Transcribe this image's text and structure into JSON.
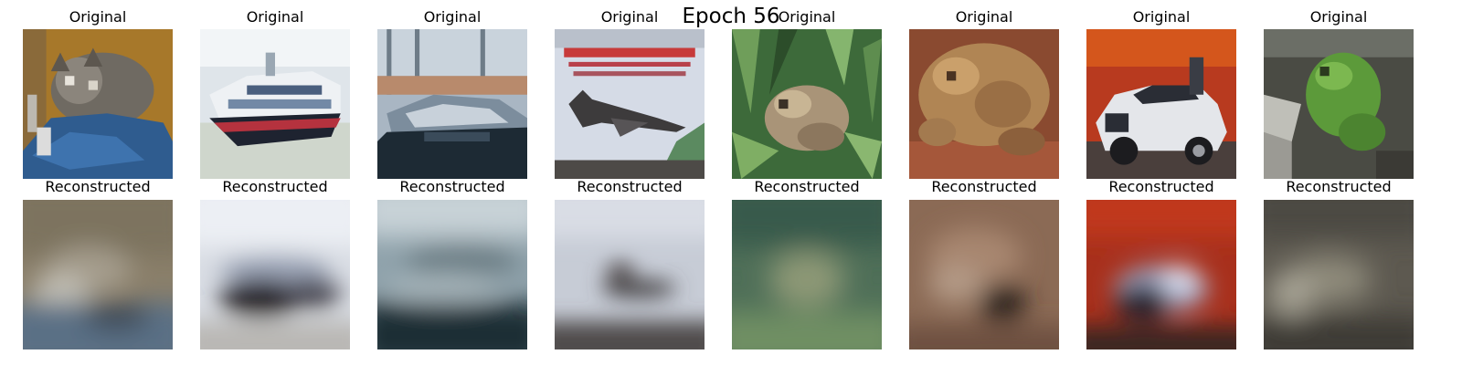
{
  "figure": {
    "title": "Epoch 56"
  },
  "panels": [
    {
      "original_label": "Original",
      "reconstructed_label": "Reconstructed",
      "original_subject": "cat",
      "reconstructed_subject": "blurred cat"
    },
    {
      "original_label": "Original",
      "reconstructed_label": "Reconstructed",
      "original_subject": "ship",
      "reconstructed_subject": "blurred ship"
    },
    {
      "original_label": "Original",
      "reconstructed_label": "Reconstructed",
      "original_subject": "ship",
      "reconstructed_subject": "blurred ship"
    },
    {
      "original_label": "Original",
      "reconstructed_label": "Reconstructed",
      "original_subject": "airplane",
      "reconstructed_subject": "blurred airplane"
    },
    {
      "original_label": "Original",
      "reconstructed_label": "Reconstructed",
      "original_subject": "frog",
      "reconstructed_subject": "blurred frog"
    },
    {
      "original_label": "Original",
      "reconstructed_label": "Reconstructed",
      "original_subject": "frog",
      "reconstructed_subject": "blurred frog"
    },
    {
      "original_label": "Original",
      "reconstructed_label": "Reconstructed",
      "original_subject": "automobile",
      "reconstructed_subject": "blurred automobile"
    },
    {
      "original_label": "Original",
      "reconstructed_label": "Reconstructed",
      "original_subject": "frog",
      "reconstructed_subject": "blurred frog"
    }
  ]
}
